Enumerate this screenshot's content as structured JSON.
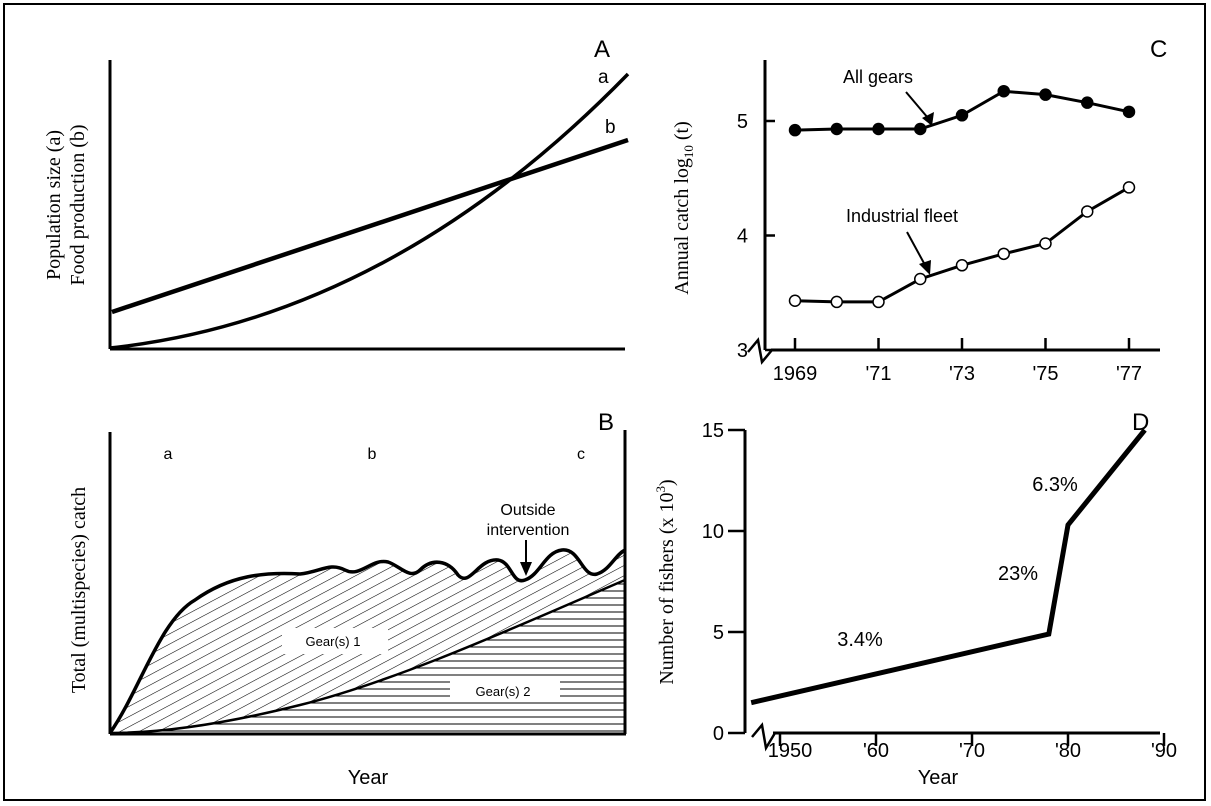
{
  "chart_data": [
    {
      "panel": "A",
      "type": "line",
      "ylabel_line1": "Population size (a)",
      "ylabel_line2": "Food production (b)",
      "series": [
        {
          "name": "a",
          "x": [
            0,
            0.5,
            1
          ],
          "values": [
            0,
            0.36,
            1.0
          ]
        },
        {
          "name": "b",
          "x": [
            0,
            1
          ],
          "values": [
            0.12,
            0.72
          ]
        }
      ]
    },
    {
      "panel": "B",
      "type": "area",
      "xlabel": "Year",
      "ylabel": "Total (multispecies) catch",
      "phases": [
        "a",
        "b",
        "c"
      ],
      "annotation_line1": "Outside",
      "annotation_line2": "intervention",
      "series": [
        {
          "name": "Gear(s) 1"
        },
        {
          "name": "Gear(s) 2"
        }
      ]
    },
    {
      "panel": "C",
      "type": "line",
      "ylabel_main": "Annual catch log",
      "ylabel_sub": "10",
      "ylabel_tail": " (t)",
      "x": [
        1969,
        1970,
        1971,
        1972,
        1973,
        1974,
        1975,
        1976,
        1977
      ],
      "xtick_labels": [
        "1969",
        "'71",
        "'73",
        "'75",
        "'77"
      ],
      "xtick_values": [
        1969,
        1971,
        1973,
        1975,
        1977
      ],
      "ylim": [
        3,
        5.5
      ],
      "yticks": [
        3,
        4,
        5
      ],
      "series": [
        {
          "name": "All gears",
          "values": [
            4.92,
            4.93,
            4.93,
            4.93,
            5.05,
            5.26,
            5.23,
            5.16,
            5.08
          ]
        },
        {
          "name": "Industrial fleet",
          "values": [
            3.43,
            3.42,
            3.42,
            3.62,
            3.74,
            3.84,
            3.93,
            4.21,
            4.42
          ]
        }
      ]
    },
    {
      "panel": "D",
      "type": "line",
      "xlabel": "Year",
      "ylabel_main": "Number of fishers (x 10",
      "ylabel_sup": "3",
      "ylabel_tail": ")",
      "xtick_labels": [
        "1950",
        "'60",
        "'70",
        "'80",
        "'90"
      ],
      "xtick_values": [
        1950,
        1960,
        1970,
        1980,
        1990
      ],
      "ylim": [
        0,
        15
      ],
      "yticks": [
        0,
        5,
        10,
        15
      ],
      "x": [
        1947,
        1978,
        1980,
        1988
      ],
      "values": [
        1.5,
        4.9,
        10.3,
        15
      ],
      "growth_labels": [
        "3.4%",
        "23%",
        "6.3%"
      ]
    }
  ]
}
